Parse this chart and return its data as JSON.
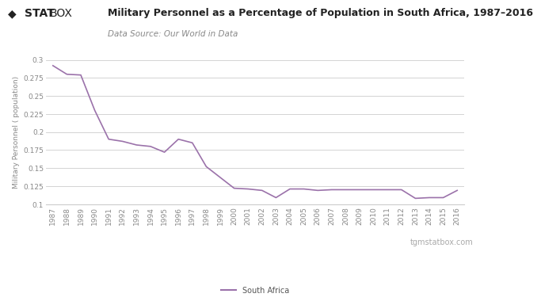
{
  "title": "Military Personnel as a Percentage of Population in South Africa, 1987–2016",
  "subtitle": "Data Source: Our World in Data",
  "ylabel": "Military Personnel ( population)",
  "line_color": "#9b72aa",
  "background_color": "#ffffff",
  "grid_color": "#cccccc",
  "legend_label": "South Africa",
  "watermark": "tgmstatbox.com",
  "years": [
    1987,
    1988,
    1989,
    1990,
    1991,
    1992,
    1993,
    1994,
    1995,
    1996,
    1997,
    1998,
    1999,
    2000,
    2001,
    2002,
    2003,
    2004,
    2005,
    2006,
    2007,
    2008,
    2009,
    2010,
    2011,
    2012,
    2013,
    2014,
    2015,
    2016
  ],
  "values": [
    0.292,
    0.28,
    0.279,
    0.23,
    0.19,
    0.187,
    0.182,
    0.18,
    0.172,
    0.19,
    0.185,
    0.152,
    0.137,
    0.122,
    0.121,
    0.119,
    0.109,
    0.121,
    0.121,
    0.119,
    0.12,
    0.12,
    0.12,
    0.12,
    0.12,
    0.12,
    0.108,
    0.109,
    0.109,
    0.119
  ],
  "ylim": [
    0.1,
    0.3
  ],
  "yticks": [
    0.1,
    0.125,
    0.15,
    0.175,
    0.2,
    0.225,
    0.25,
    0.275,
    0.3
  ],
  "title_fontsize": 9.0,
  "subtitle_fontsize": 7.5,
  "tick_fontsize": 6.5,
  "ylabel_fontsize": 6.5,
  "legend_fontsize": 7.0,
  "watermark_fontsize": 7.0
}
